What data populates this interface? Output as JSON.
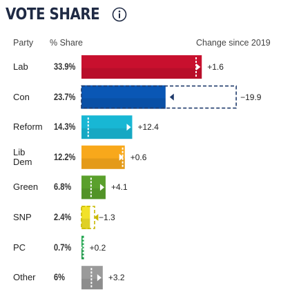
{
  "header": {
    "title": "VOTE SHARE",
    "col_party": "Party",
    "col_share": "% Share",
    "col_change": "Change since 2019"
  },
  "chart_data": {
    "type": "bar",
    "title": "VOTE SHARE",
    "categories": [
      "Lab",
      "Con",
      "Reform",
      "Lib\nDem",
      "Green",
      "SNP",
      "PC",
      "Other"
    ],
    "series": [
      {
        "values": [
          33.9,
          23.7,
          14.3,
          12.2,
          6.8,
          2.4,
          0.7,
          6
        ]
      },
      {
        "name": "Change since 2019",
        "values": [
          1.6,
          -19.9,
          12.4,
          0.6,
          4.1,
          -1.3,
          0.2,
          3.2
        ]
      }
    ],
    "share_labels": [
      "33.9%",
      "23.7%",
      "14.3%",
      "12.2%",
      "6.8%",
      "2.4%",
      "0.7%",
      "6%"
    ],
    "change_labels": [
      "+1.6",
      "−19.9",
      "+12.4",
      "+0.6",
      "+4.1",
      "−1.3",
      "+0.2",
      "+3.2"
    ],
    "colors": [
      "#c8102e",
      "#0a57b5",
      "#18b7d4",
      "#f8a81b",
      "#5aa02c",
      "#f2e22a",
      "#1aa34a",
      "#9a9a9a"
    ],
    "grid": false,
    "legend": "none"
  }
}
